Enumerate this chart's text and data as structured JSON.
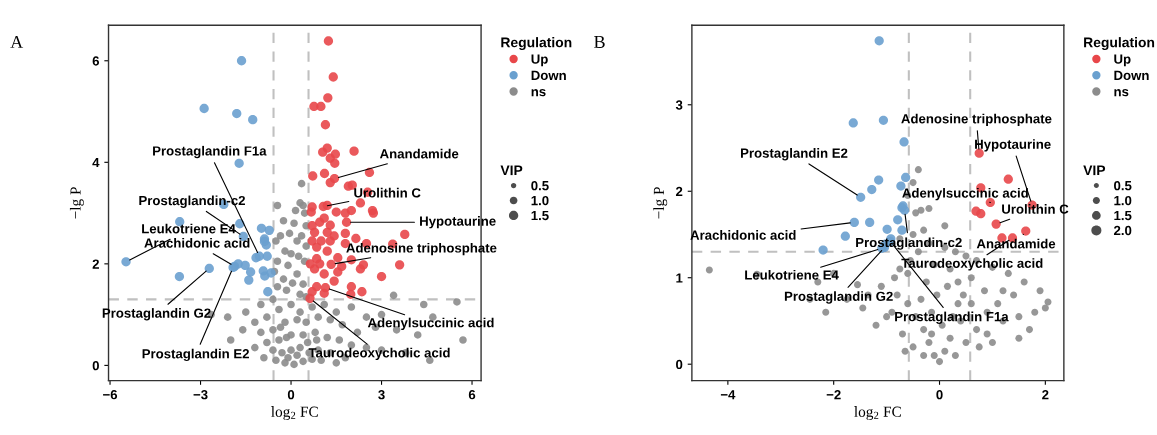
{
  "chart_data": [
    {
      "type": "bubble",
      "title": "A",
      "xlabel": "log$_{2}$ FC",
      "ylabel": "−lg P",
      "legend_title": "Regulation",
      "legend": "right",
      "grid": false,
      "marker": "circle",
      "xlim": [
        -6.05,
        6.3
      ],
      "ylim": [
        -0.3,
        6.7
      ],
      "xticks": [
        -6,
        -3,
        0,
        3,
        6
      ],
      "yticks": [
        0,
        2,
        4,
        6
      ],
      "size_legend": [
        0.5,
        {
          "value": 1,
          "label": "1.0"
        },
        1.5
      ],
      "ref_lines": [
        {
          "axis": "x",
          "value": -0.58,
          "color": "#c0c0c0",
          "line_style": "dashed"
        },
        {
          "axis": "x",
          "value": 0.58,
          "color": "#c0c0c0",
          "line_style": "dashed"
        },
        {
          "axis": "y",
          "value": 1.3,
          "color": "#c0c0c0",
          "line_style": "dashed"
        }
      ],
      "series": [
        {
          "name": "Up",
          "color": "#e8474a",
          "x": [
            1.24,
            1.4,
            1.22,
            0.76,
            0.99,
            1.14,
            1.2,
            1.05,
            1.47,
            2.09,
            1.3,
            1.45,
            2.6,
            0.72,
            1.11,
            1.3,
            1.9,
            2.03,
            2.54,
            2.73,
            0.67,
            1.5,
            1.8,
            2.7,
            2.3,
            0.95,
            1.3,
            0.78,
            1.43,
            1.8,
            2.15,
            2.5,
            3.37,
            3.77,
            0.85,
            1.2,
            1.55,
            2.0,
            2.3,
            2.4,
            3.6,
            3.0,
            0.78,
            1.1,
            1.55,
            1.43,
            0.85,
            2.0,
            2.35,
            1.98,
            0.7,
            1.1,
            0.95,
            0.64,
            0.7,
            0.7,
            1.8,
            1.3,
            1.0,
            1.68,
            0.85,
            1.2,
            1.1,
            2.0,
            0.7,
            1.2,
            1.44,
            1.07,
            1.84,
            1.33,
            1.14,
            0.63
          ],
          "values": [
            6.39,
            5.68,
            5.27,
            5.1,
            5.1,
            4.74,
            4.28,
            4.2,
            4.16,
            4.22,
            4.08,
            3.98,
            3.8,
            3.73,
            3.78,
            3.6,
            3.53,
            3.55,
            3.41,
            3.0,
            3.02,
            3.02,
            3.0,
            3.05,
            3.2,
            2.82,
            2.76,
            2.62,
            2.55,
            2.6,
            2.5,
            2.4,
            2.39,
            2.58,
            2.33,
            2.25,
            2.12,
            2.08,
            1.9,
            1.98,
            1.98,
            1.75,
            1.9,
            1.8,
            1.84,
            1.66,
            1.55,
            1.55,
            1.45,
            1.4,
            1.45,
            1.42,
            2.0,
            2.0,
            2.45,
            2.75,
            2.4,
            2.45,
            2.45,
            1.95,
            2.1,
            2.62,
            2.9,
            3.05,
            3.12,
            3.15,
            3.68,
            3.13,
            2.82,
            1.99,
            1.53,
            1.32
          ],
          "sizes": [
            1.5,
            1.5,
            1.5,
            1.5,
            1.5,
            1.5,
            1.5,
            1.5,
            1.5,
            1.5,
            1.5,
            1.5,
            1.5,
            1.5,
            1.5,
            1.5,
            1.5,
            1.5,
            1.5,
            1.5,
            1.5,
            1.5,
            1.5,
            1.5,
            1.5,
            1.5,
            1.5,
            1.5,
            1.5,
            1.5,
            1.5,
            1.5,
            1.5,
            1.5,
            1.5,
            1.5,
            1.5,
            1.5,
            1.5,
            1.5,
            1.5,
            1.5,
            1.5,
            1.5,
            1.5,
            1.5,
            1.5,
            1.5,
            1.5,
            1.5,
            1.5,
            1.5,
            1.5,
            1.5,
            1.5,
            1.5,
            1.5,
            1.5,
            1.5,
            1.5,
            1.5,
            1.5,
            1.5,
            1.5,
            1.5,
            1.5,
            1.5,
            1.5,
            1.5,
            1.5,
            1.5,
            1.5
          ]
        },
        {
          "name": "Down",
          "color": "#6aa0cf",
          "x": [
            -1.64,
            -2.88,
            -1.8,
            -1.27,
            -1.72,
            -2.23,
            -3.69,
            -1.7,
            -1.58,
            -5.47,
            -2.71,
            -3.7,
            -1.87,
            -1.75,
            -1.52,
            -1.34,
            -1.4,
            -1.16,
            -0.98,
            -0.72,
            -0.88,
            -0.82,
            -0.79,
            -0.92,
            -0.87,
            -0.66,
            -0.77,
            -0.88,
            -1.05,
            -1.92
          ],
          "values": [
            6.0,
            5.06,
            4.96,
            4.84,
            3.98,
            3.17,
            2.83,
            2.79,
            2.54,
            2.04,
            1.91,
            1.75,
            1.95,
            2.0,
            1.97,
            1.84,
            1.68,
            2.12,
            2.7,
            2.66,
            2.49,
            2.37,
            2.15,
            1.86,
            1.76,
            1.82,
            1.45,
            2.44,
            2.15,
            1.93
          ],
          "sizes": [
            1.5,
            1.5,
            1.5,
            1.5,
            1.5,
            1.5,
            1.5,
            1.5,
            1.5,
            1.5,
            1.5,
            1.5,
            1.5,
            1.5,
            1.5,
            1.5,
            1.5,
            1.5,
            1.5,
            1.5,
            1.5,
            1.5,
            1.5,
            1.5,
            1.5,
            1.5,
            1.5,
            1.5,
            1.5,
            1.5
          ]
        },
        {
          "name": "ns",
          "color": "#8c8c8c",
          "x": [
            -0.45,
            0.35,
            0.3,
            0.4,
            0.15,
            0.45,
            -0.25,
            0.1,
            0.5,
            -0.35,
            -0.05,
            0.35,
            -0.5,
            0.2,
            0.5,
            -0.2,
            0.0,
            0.25,
            -0.45,
            -0.1,
            0.45,
            -0.55,
            0.2,
            -0.25,
            0.05,
            0.4,
            -0.45,
            -0.15,
            0.3,
            0.5,
            -0.6,
            -1.0,
            -1.5,
            -2.1,
            -2.65,
            -1.2,
            -0.8,
            -0.4,
            0.0,
            0.3,
            0.7,
            1.1,
            1.5,
            2.0,
            2.5,
            3.0,
            3.4,
            4.4,
            4.7,
            5.5,
            5.7,
            4.2,
            3.5,
            2.8,
            2.2,
            1.7,
            1.3,
            0.9,
            0.5,
            0.2,
            -0.2,
            -0.6,
            -1.0,
            -1.6,
            -2.0,
            -0.8,
            -0.4,
            0.0,
            0.4,
            0.8,
            1.2,
            1.6,
            2.0,
            2.5,
            3.0,
            3.8,
            4.6,
            1.8,
            1.3,
            0.9,
            0.6,
            0.3,
            0.0,
            -0.3,
            -0.6,
            -1.2,
            -0.9,
            -0.5,
            -0.2,
            0.1,
            0.4,
            0.7,
            1.0,
            1.5,
            0.2,
            -0.1,
            0.55,
            -0.15,
            0.85,
            -0.35
          ],
          "values": [
            3.15,
            3.58,
            3.2,
            3.15,
            3.05,
            3.0,
            2.85,
            2.8,
            2.75,
            2.55,
            2.6,
            2.55,
            2.45,
            2.45,
            2.35,
            2.25,
            2.2,
            2.15,
            2.05,
            1.97,
            2.05,
            1.85,
            1.8,
            1.7,
            1.62,
            1.6,
            1.55,
            1.48,
            1.4,
            1.35,
            1.3,
            1.2,
            1.05,
            0.95,
            1.0,
            0.85,
            0.95,
            1.1,
            1.2,
            1.05,
            1.15,
            1.2,
            1.05,
            1.15,
            0.95,
            1.0,
            1.38,
            1.2,
            0.95,
            1.25,
            0.5,
            0.6,
            0.7,
            0.75,
            0.65,
            0.8,
            0.9,
            0.95,
            0.85,
            0.9,
            0.85,
            0.7,
            0.65,
            0.7,
            0.5,
            0.45,
            0.5,
            0.6,
            0.6,
            0.65,
            0.55,
            0.5,
            0.4,
            0.35,
            0.3,
            0.25,
            0.1,
            0.15,
            0.25,
            0.3,
            0.25,
            0.35,
            0.3,
            0.25,
            0.3,
            0.35,
            0.15,
            0.1,
            0.05,
            0.02,
            0.08,
            0.12,
            0.1,
            0.05,
            0.2,
            0.15,
            0.45,
            0.55,
            0.5,
            0.75
          ],
          "sizes": [
            1.0,
            1.0,
            1.0,
            1.0,
            1.0,
            1.0,
            1.0,
            1.0,
            1.0,
            1.0,
            1.0,
            1.0,
            1.0,
            1.0,
            1.0,
            1.0,
            1.0,
            1.0,
            1.0,
            1.0,
            1.0,
            1.0,
            1.0,
            1.0,
            1.0,
            1.0,
            1.0,
            1.0,
            1.0,
            1.0,
            1.0,
            1.0,
            1.0,
            1.0,
            1.0,
            1.0,
            1.0,
            1.0,
            1.0,
            1.0,
            1.0,
            1.0,
            1.0,
            1.0,
            1.0,
            1.0,
            1.0,
            1.0,
            1.0,
            1.0,
            1.0,
            1.0,
            1.0,
            1.0,
            1.0,
            1.0,
            1.0,
            1.0,
            1.0,
            1.0,
            1.0,
            1.0,
            1.0,
            1.0,
            1.0,
            1.0,
            1.0,
            1.0,
            1.0,
            1.0,
            1.0,
            1.0,
            1.0,
            1.0,
            1.0,
            1.0,
            1.0,
            1.0,
            1.0,
            1.0,
            1.0,
            1.0,
            1.0,
            1.0,
            1.0,
            1.0,
            1.0,
            1.0,
            1.0,
            1.0,
            1.0,
            1.0,
            1.0,
            1.0,
            1.0,
            1.0,
            1.0,
            1.0,
            1.0,
            1.0
          ]
        }
      ],
      "annotations": [
        "VIP",
        {
          "text": "Prostaglandin F1a",
          "x": -1.05,
          "y": 2.15
        },
        {
          "text": "Prostaglandin-c2",
          "x": -1.58,
          "y": 2.54
        },
        {
          "text": "Leukotriene E4",
          "x": -5.47,
          "y": 2.04
        },
        {
          "text": "Arachidonic acid",
          "x": -1.87,
          "y": 1.95
        },
        {
          "text": "Prostaglandin G2",
          "x": -2.71,
          "y": 1.91
        },
        {
          "text": "Prostaglandin E2",
          "x": -1.92,
          "y": 1.93
        },
        {
          "text": "Anandamide",
          "x": 1.44,
          "y": 3.68
        },
        {
          "text": "Urolithin C",
          "x": 1.07,
          "y": 3.13
        },
        {
          "text": "Hypotaurine",
          "x": 1.84,
          "y": 2.82
        },
        {
          "text": "Adenosine triphosphate",
          "x": 1.33,
          "y": 1.99
        },
        {
          "text": "Adenylsuccinic acid",
          "x": 1.14,
          "y": 1.53
        },
        {
          "text": "Taurodeoxycholic acid",
          "x": 0.63,
          "y": 1.32
        }
      ]
    },
    {
      "type": "bubble",
      "title": "B",
      "xlabel": "log$_{2}$ FC",
      "ylabel": "−lg P",
      "legend_title": "Regulation",
      "legend": "right",
      "grid": false,
      "marker": "circle",
      "xlim": [
        -4.68,
        2.35
      ],
      "ylim": [
        -0.19,
        3.92
      ],
      "xticks": [
        -4,
        -2,
        0,
        2
      ],
      "yticks": [
        0,
        1,
        2,
        3
      ],
      "size_legend": [
        0.5,
        {
          "value": 1,
          "label": "1.0"
        },
        1.5,
        {
          "value": 2,
          "label": "2.0"
        }
      ],
      "ref_lines": [
        {
          "axis": "x",
          "value": -0.58,
          "color": "#c0c0c0",
          "line_style": "dashed"
        },
        {
          "axis": "x",
          "value": 0.58,
          "color": "#c0c0c0",
          "line_style": "dashed"
        },
        {
          "axis": "y",
          "value": 1.3,
          "color": "#c0c0c0",
          "line_style": "dashed"
        }
      ],
      "series": [
        {
          "name": "Up",
          "color": "#e8474a",
          "x": [
            0.75,
            1.3,
            0.78,
            1.75,
            0.96,
            0.69,
            0.78,
            1.07,
            1.63,
            1.38,
            1.18
          ],
          "values": [
            2.44,
            2.14,
            2.04,
            1.84,
            1.87,
            1.77,
            1.74,
            1.62,
            1.54,
            1.46,
            1.46
          ],
          "sizes": [
            1.7,
            1.7,
            1.7,
            1.7,
            1.7,
            1.7,
            1.7,
            1.7,
            1.7,
            1.7,
            1.7
          ]
        },
        {
          "name": "Down",
          "color": "#6aa0cf",
          "x": [
            -1.14,
            -1.63,
            -1.06,
            -0.67,
            -1.15,
            -1.28,
            -0.73,
            -0.64,
            -1.49,
            -0.71,
            -0.69,
            -0.66,
            -1.61,
            -1.32,
            -0.79,
            -0.99,
            -1.78,
            -2.2,
            -0.71,
            -1.04,
            -1.02,
            -0.92,
            -1.09,
            -0.93
          ],
          "values": [
            3.74,
            2.79,
            2.82,
            2.57,
            2.13,
            2.02,
            2.06,
            2.16,
            1.93,
            1.81,
            1.83,
            1.78,
            1.64,
            1.64,
            1.67,
            1.56,
            1.48,
            1.32,
            1.55,
            1.35,
            1.39,
            1.45,
            1.34,
            1.42
          ],
          "sizes": [
            1.7,
            1.7,
            1.7,
            1.7,
            1.7,
            1.7,
            1.7,
            1.7,
            1.7,
            1.7,
            1.7,
            1.7,
            1.7,
            1.7,
            1.7,
            1.7,
            1.7,
            1.7,
            1.7,
            1.7,
            1.7,
            1.7,
            1.7,
            1.7
          ]
        },
        {
          "name": "ns",
          "color": "#8c8c8c",
          "x": [
            -4.35,
            -3.45,
            -2.45,
            -2.3,
            -2.15,
            -1.75,
            -1.45,
            -1.35,
            -1.1,
            -0.75,
            -0.85,
            -0.55,
            -0.4,
            -0.45,
            -0.35,
            -0.5,
            -0.4,
            -0.6,
            -0.3,
            -0.2,
            0.1,
            0.3,
            0.5,
            0.7,
            1.0,
            1.3,
            1.6,
            1.9,
            2.05,
            2.0,
            1.8,
            1.5,
            1.2,
            0.9,
            0.6,
            0.4,
            0.2,
            0.1,
            0.0,
            -0.1,
            -0.2,
            -0.3,
            -0.45,
            -0.6,
            -0.8,
            -1.0,
            -1.2,
            -0.7,
            -0.5,
            -0.3,
            0.3,
            0.5,
            0.7,
            0.9,
            1.1,
            1.4,
            1.7,
            0.25,
            -0.15,
            -0.05,
            0.15,
            0.35,
            -0.25,
            -0.6,
            0.6,
            0.85,
            -0.9,
            -0.65,
            0.45,
            0.2,
            -0.1,
            1.2,
            1.5,
            0.75,
            -0.35,
            0.05,
            -0.15,
            0.35,
            -0.75,
            -0.2,
            0.1,
            -0.5,
            1.0,
            -1.55,
            -2.0
          ],
          "values": [
            1.09,
            1.04,
            0.75,
            0.95,
            0.6,
            0.75,
            0.65,
            0.8,
            0.9,
            1.1,
            1.0,
            1.2,
            1.3,
            1.75,
            1.78,
            2.1,
            2.25,
            1.95,
            1.55,
            1.4,
            1.35,
            1.3,
            1.25,
            1.2,
            1.12,
            1.05,
            0.95,
            0.85,
            0.72,
            0.65,
            0.6,
            0.55,
            0.5,
            0.6,
            0.7,
            0.5,
            0.3,
            0.15,
            0.03,
            0.1,
            0.25,
            0.4,
            0.55,
            0.7,
            0.8,
            0.55,
            0.45,
            0.35,
            0.2,
            0.1,
            0.1,
            0.25,
            0.4,
            0.35,
            0.7,
            0.8,
            0.4,
            0.55,
            0.6,
            0.8,
            0.9,
            0.95,
            0.95,
            1.05,
            1.0,
            0.85,
            0.6,
            0.15,
            0.8,
            1.1,
            1.15,
            0.85,
            0.3,
            0.2,
            0.75,
            0.45,
            0.35,
            0.7,
            1.45,
            1.8,
            1.6,
            1.5,
            0.25,
            0.92,
            1.05
          ],
          "sizes": [
            1.0,
            1.0,
            1.0,
            1.0,
            1.0,
            1.0,
            1.0,
            1.0,
            1.0,
            1.0,
            1.0,
            1.0,
            1.0,
            1.0,
            1.0,
            1.0,
            1.0,
            1.0,
            1.0,
            1.0,
            1.0,
            1.0,
            1.0,
            1.0,
            1.0,
            1.0,
            1.0,
            1.0,
            1.0,
            1.0,
            1.0,
            1.0,
            1.0,
            1.0,
            1.0,
            1.0,
            1.0,
            1.0,
            1.0,
            1.0,
            1.0,
            1.0,
            1.0,
            1.0,
            1.0,
            1.0,
            1.0,
            1.0,
            1.0,
            1.0,
            1.0,
            1.0,
            1.0,
            1.0,
            1.0,
            1.0,
            1.0,
            1.0,
            1.0,
            1.0,
            1.0,
            1.0,
            1.0,
            1.0,
            1.0,
            1.0,
            1.0,
            1.0,
            1.0,
            1.0,
            1.0,
            1.0,
            1.0,
            1.0,
            1.0,
            1.0,
            1.0,
            1.0,
            1.0,
            1.0,
            1.0,
            1.0,
            1.0,
            1.0,
            1.0
          ]
        }
      ],
      "annotations": [
        "VIP",
        {
          "text": "Prostaglandin E2",
          "x": -1.49,
          "y": 1.93
        },
        {
          "text": "Arachidonic acid",
          "x": -1.61,
          "y": 1.64
        },
        {
          "text": "Leukotriene E4",
          "x": -1.09,
          "y": 1.34
        },
        {
          "text": "Prostaglandin G2",
          "x": -1.04,
          "y": 1.35
        },
        {
          "text": "Prostaglandin F1a",
          "x": -0.93,
          "y": 1.42
        },
        {
          "text": "Prostaglandin-c2",
          "x": -0.66,
          "y": 1.78
        },
        {
          "text": "Adenosine triphosphate",
          "x": 0.75,
          "y": 2.44
        },
        {
          "text": "Hypotaurine",
          "x": 1.75,
          "y": 1.84
        },
        {
          "text": "Adenylsuccinic acid",
          "x": 0.96,
          "y": 1.87
        },
        {
          "text": "Urolithin C",
          "x": 1.07,
          "y": 1.62
        },
        {
          "text": "Anandamide",
          "x": 1.63,
          "y": 1.54
        },
        {
          "text": "Taurodeoxycholic acid",
          "x": 1.38,
          "y": 1.46
        }
      ]
    }
  ]
}
